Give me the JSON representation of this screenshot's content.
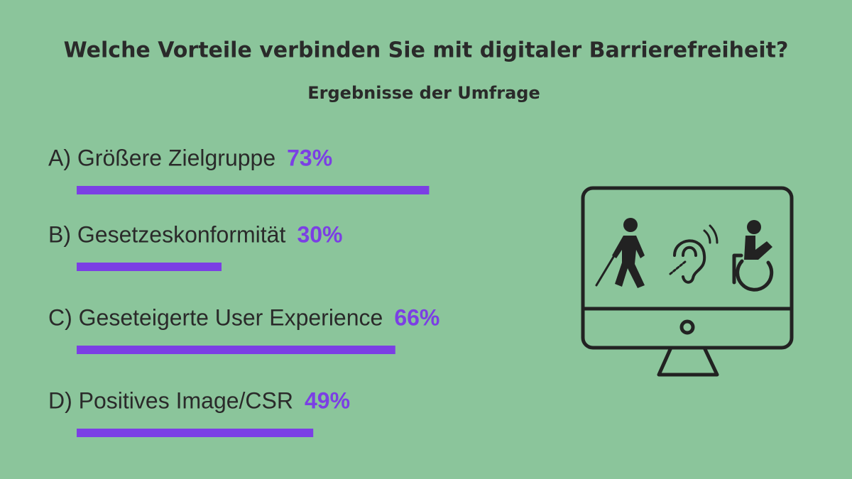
{
  "chart_data": {
    "type": "bar",
    "orientation": "horizontal",
    "title": "Welche Vorteile verbinden Sie mit digitaler Barrierefreiheit?",
    "subtitle": "Ergebnisse der Umfrage",
    "categories": [
      "A) Größere Zielgruppe",
      "B) Gesetzeskonformität",
      "C) Geseteigerte User Experience",
      "D) Positives Image/CSR"
    ],
    "values": [
      73,
      30,
      66,
      49
    ],
    "value_labels": [
      "73%",
      "30%",
      "66%",
      "49%"
    ],
    "color": "#7b3fe4"
  }
}
